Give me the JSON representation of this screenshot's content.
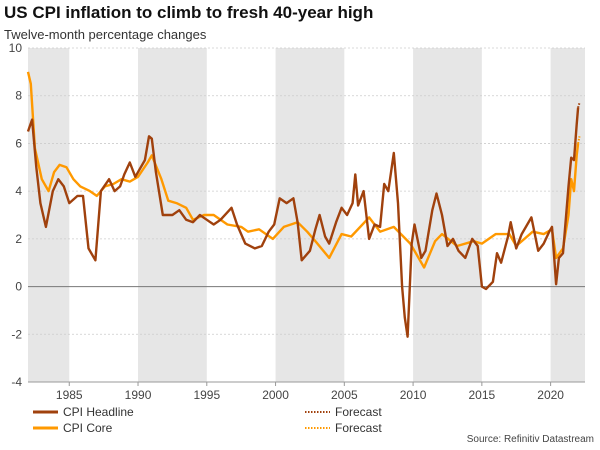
{
  "title": "US CPI inflation to climb to fresh 40-year high",
  "subtitle": "Twelve-month percentage changes",
  "source": "Source: Refinitiv Datastream",
  "colors": {
    "headline": "#a0410d",
    "core": "#ff9900",
    "shade": "#e6e6e6",
    "grid": "#cccccc",
    "zero": "#777777"
  },
  "chart_data": {
    "type": "line",
    "xlim": [
      1982,
      2022.5
    ],
    "ylim": [
      -4,
      10
    ],
    "yticks": [
      -4,
      -2,
      0,
      2,
      4,
      6,
      8,
      10
    ],
    "xticks": [
      1985,
      1990,
      1995,
      2000,
      2005,
      2010,
      2015,
      2020
    ],
    "grid": "horizontal dotted",
    "shaded_periods": [
      [
        1982,
        1985
      ],
      [
        1990,
        1995
      ],
      [
        2000,
        2005
      ],
      [
        2010,
        2015
      ],
      [
        2020,
        2022.5
      ]
    ],
    "legend": [
      {
        "label": "CPI Headline",
        "style": "solid",
        "series": "headline"
      },
      {
        "label": "Forecast",
        "style": "dotted",
        "series": "headline"
      },
      {
        "label": "CPI Core",
        "style": "solid",
        "series": "core"
      },
      {
        "label": "Forecast",
        "style": "dotted",
        "series": "core"
      }
    ],
    "legend_placement": "bottom",
    "series": [
      {
        "name": "CPI Headline",
        "key": "headline",
        "x": [
          1982.0,
          1982.3,
          1982.6,
          1982.9,
          1983.3,
          1983.8,
          1984.2,
          1984.6,
          1985.0,
          1985.6,
          1986.0,
          1986.4,
          1986.9,
          1987.3,
          1987.9,
          1988.3,
          1988.7,
          1989.0,
          1989.4,
          1989.8,
          1990.5,
          1990.8,
          1991.0,
          1991.3,
          1991.8,
          1992.5,
          1993.0,
          1993.5,
          1994.0,
          1994.5,
          1995.0,
          1995.5,
          1996.0,
          1996.8,
          1997.2,
          1997.8,
          1998.5,
          1999.0,
          1999.5,
          1999.9,
          2000.3,
          2000.8,
          2001.3,
          2001.6,
          2001.9,
          2002.5,
          2002.9,
          2003.2,
          2003.6,
          2003.9,
          2004.4,
          2004.8,
          2005.2,
          2005.6,
          2005.8,
          2006.0,
          2006.4,
          2006.8,
          2007.2,
          2007.6,
          2007.9,
          2008.2,
          2008.6,
          2008.9,
          2009.2,
          2009.4,
          2009.6,
          2009.9,
          2010.1,
          2010.6,
          2010.9,
          2011.4,
          2011.7,
          2012.1,
          2012.5,
          2012.9,
          2013.3,
          2013.8,
          2014.3,
          2014.7,
          2015.0,
          2015.3,
          2015.8,
          2016.1,
          2016.4,
          2016.9,
          2017.1,
          2017.5,
          2017.9,
          2018.6,
          2019.1,
          2019.5,
          2019.9,
          2020.1,
          2020.4,
          2020.6,
          2020.9,
          2021.3,
          2021.5,
          2021.7,
          2021.9,
          2022.0
        ],
        "values": [
          6.5,
          7.0,
          5.0,
          3.5,
          2.5,
          4.0,
          4.5,
          4.2,
          3.5,
          3.8,
          3.8,
          1.6,
          1.1,
          4.0,
          4.5,
          4.0,
          4.2,
          4.7,
          5.2,
          4.6,
          5.3,
          6.3,
          6.2,
          4.8,
          3.0,
          3.0,
          3.2,
          2.8,
          2.7,
          3.0,
          2.8,
          2.6,
          2.8,
          3.3,
          2.6,
          1.8,
          1.6,
          1.7,
          2.3,
          2.6,
          3.7,
          3.5,
          3.7,
          2.7,
          1.1,
          1.5,
          2.4,
          3.0,
          2.1,
          1.8,
          2.7,
          3.3,
          3.0,
          3.5,
          4.7,
          3.4,
          4.0,
          2.0,
          2.6,
          2.5,
          4.3,
          4.0,
          5.6,
          3.5,
          0.0,
          -1.3,
          -2.1,
          1.8,
          2.6,
          1.2,
          1.5,
          3.2,
          3.9,
          3.0,
          1.7,
          2.0,
          1.5,
          1.2,
          2.0,
          1.7,
          0.0,
          -0.1,
          0.2,
          1.4,
          1.0,
          2.1,
          2.7,
          1.6,
          2.2,
          2.9,
          1.5,
          1.8,
          2.3,
          2.5,
          0.1,
          1.2,
          1.4,
          4.2,
          5.4,
          5.3,
          6.8,
          7.5
        ],
        "forecast": {
          "x": [
            2022.0,
            2022.1
          ],
          "values": [
            7.5,
            7.7
          ]
        }
      },
      {
        "name": "CPI Core",
        "key": "core",
        "x": [
          1982.0,
          1982.2,
          1982.5,
          1983.0,
          1983.5,
          1983.9,
          1984.3,
          1984.8,
          1985.3,
          1985.8,
          1986.5,
          1987.0,
          1987.6,
          1988.2,
          1988.8,
          1989.4,
          1990.0,
          1990.7,
          1991.0,
          1991.7,
          1992.2,
          1992.8,
          1993.5,
          1994.0,
          1994.8,
          1995.5,
          1996.5,
          1997.5,
          1998.0,
          1998.8,
          1999.8,
          2000.6,
          2001.6,
          2002.3,
          2002.9,
          2003.9,
          2004.8,
          2005.5,
          2006.8,
          2007.6,
          2008.6,
          2009.8,
          2010.8,
          2011.6,
          2012.1,
          2013.2,
          2014.4,
          2015.0,
          2016.0,
          2017.0,
          2017.5,
          2018.7,
          2019.5,
          2020.1,
          2020.4,
          2020.9,
          2021.3,
          2021.5,
          2021.7,
          2021.9,
          2022.0
        ],
        "values": [
          9.0,
          8.5,
          5.8,
          4.5,
          4.0,
          4.8,
          5.1,
          5.0,
          4.5,
          4.2,
          4.0,
          3.8,
          4.2,
          4.3,
          4.5,
          4.4,
          4.6,
          5.2,
          5.5,
          4.5,
          3.6,
          3.5,
          3.3,
          2.8,
          3.0,
          3.0,
          2.6,
          2.5,
          2.3,
          2.4,
          2.0,
          2.5,
          2.7,
          2.3,
          1.9,
          1.2,
          2.2,
          2.1,
          2.9,
          2.3,
          2.5,
          1.8,
          0.8,
          1.9,
          2.2,
          1.7,
          1.9,
          1.8,
          2.2,
          2.2,
          1.7,
          2.3,
          2.2,
          2.4,
          1.2,
          1.6,
          3.0,
          4.5,
          4.0,
          5.5,
          6.0
        ],
        "forecast": {
          "x": [
            2022.0,
            2022.1
          ],
          "values": [
            6.0,
            6.3
          ]
        }
      }
    ]
  }
}
